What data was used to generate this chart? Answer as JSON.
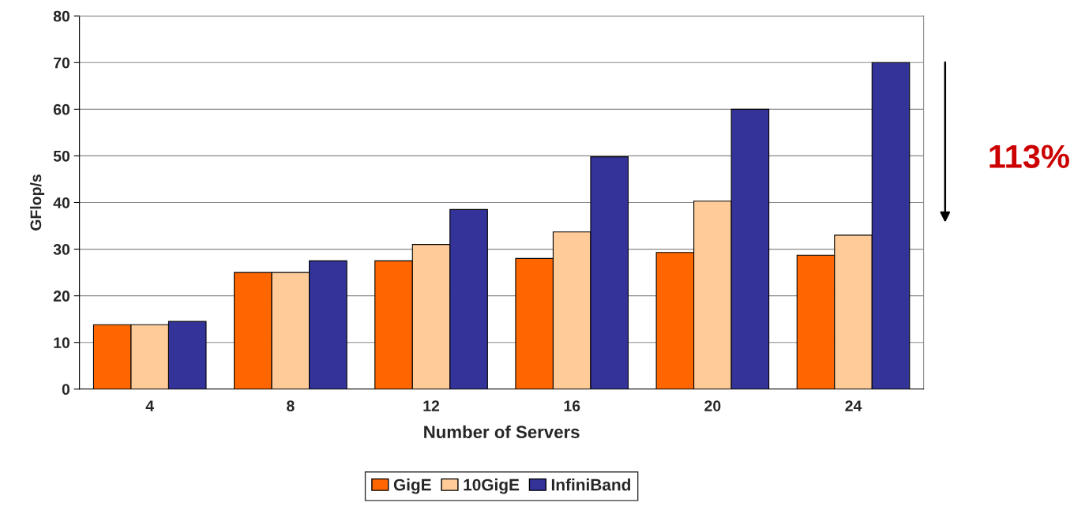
{
  "chart_data": {
    "type": "bar",
    "xlabel": "Number of Servers",
    "ylabel": "GFlop/s",
    "categories": [
      "4",
      "8",
      "12",
      "16",
      "20",
      "24"
    ],
    "series": [
      {
        "name": "GigE",
        "color": "#ff6600",
        "values": [
          13.8,
          25,
          27.5,
          28,
          29.3,
          28.7
        ]
      },
      {
        "name": "10GigE",
        "color": "#ffcc99",
        "values": [
          13.8,
          25,
          31,
          33.7,
          40.3,
          33
        ]
      },
      {
        "name": "InfiniBand",
        "color": "#333399",
        "values": [
          14.5,
          27.5,
          38.5,
          49.8,
          60,
          70
        ]
      }
    ],
    "ylim": [
      0,
      80
    ],
    "yticks": [
      0,
      10,
      20,
      30,
      40,
      50,
      60,
      70,
      80
    ],
    "grid": "y",
    "legend": "bottom",
    "annotations": [
      "113%"
    ]
  }
}
